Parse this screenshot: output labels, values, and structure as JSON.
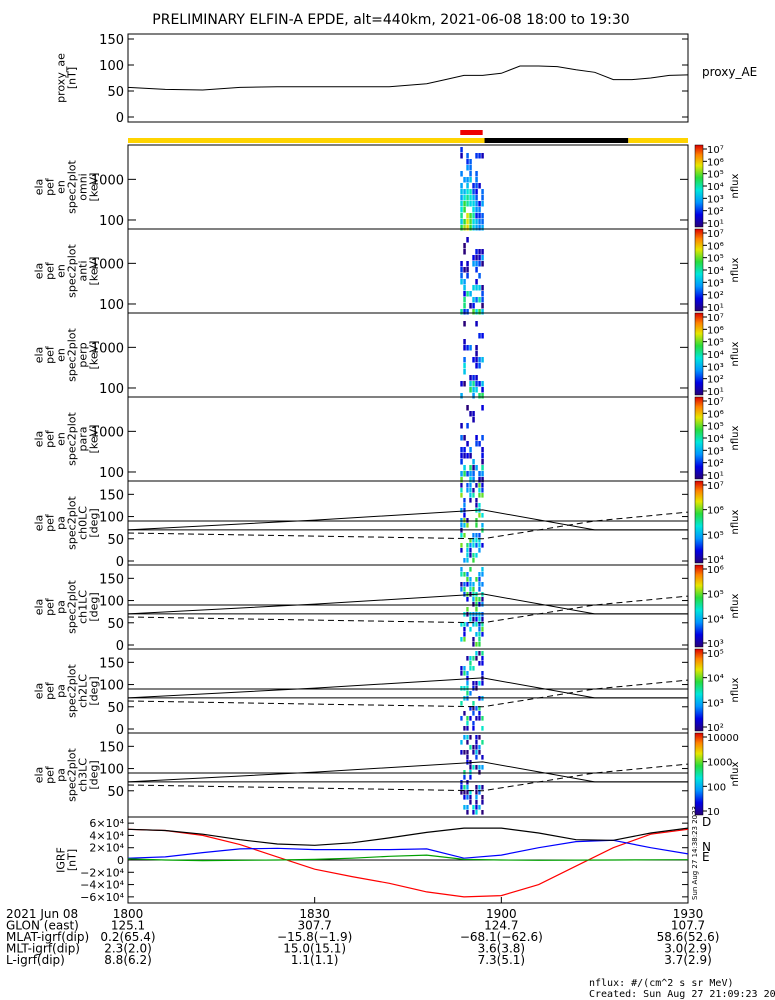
{
  "title": "PRELIMINARY ELFIN-A EPDE, alt=440km, 2021-06-08 18:00 to 19:30",
  "colors": {
    "sunlit": "#ffd400",
    "shadow": "#000000",
    "science": "#ee0000",
    "north": "#0000ff",
    "east": "#00a000",
    "down": "#ff0000",
    "total": "#000000"
  },
  "state_bar": [
    {
      "kind": "sunlit",
      "t0": 18.0,
      "t1": 18.955
    },
    {
      "kind": "shadow",
      "t0": 18.955,
      "t1": 19.34
    },
    {
      "kind": "sunlit",
      "t0": 19.34,
      "t1": 19.5
    },
    {
      "kind": "science",
      "t0": 18.89,
      "t1": 18.95
    }
  ],
  "panels": {
    "ae": {
      "ylabel": [
        "proxy_ae",
        "[nT]"
      ],
      "yticks": [
        "0",
        "50",
        "100",
        "150"
      ],
      "right_label": "proxy_AE"
    },
    "spec": [
      {
        "ylabel": [
          "ela",
          "pef",
          "en",
          "spec2plot",
          "omni",
          "[keV]"
        ],
        "yticks": [
          "100",
          "1000"
        ],
        "zunit": "nflux"
      },
      {
        "ylabel": [
          "ela",
          "pef",
          "en",
          "spec2plot",
          "anti",
          "[keV]"
        ],
        "yticks": [
          "100",
          "1000"
        ],
        "zunit": "nflux"
      },
      {
        "ylabel": [
          "ela",
          "pef",
          "en",
          "spec2plot",
          "perp",
          "[keV]"
        ],
        "yticks": [
          "100",
          "1000"
        ],
        "zunit": "nflux"
      },
      {
        "ylabel": [
          "ela",
          "pef",
          "en",
          "spec2plot",
          "para",
          "[keV]"
        ],
        "yticks": [
          "100",
          "1000"
        ],
        "zunit": "nflux"
      }
    ],
    "pa": [
      {
        "ylabel": [
          "ela",
          "pef",
          "pa",
          "spec2plot",
          "ch0LC",
          "[deg]"
        ],
        "yticks": [
          "0",
          "50",
          "100",
          "150"
        ],
        "zunit": "nflux"
      },
      {
        "ylabel": [
          "ela",
          "pef",
          "pa",
          "spec2plot",
          "ch1LC",
          "[deg]"
        ],
        "yticks": [
          "0",
          "50",
          "100",
          "150"
        ],
        "zunit": "nflux"
      },
      {
        "ylabel": [
          "ela",
          "pef",
          "pa",
          "spec2plot",
          "ch2LC",
          "[deg]"
        ],
        "yticks": [
          "0",
          "50",
          "100",
          "150"
        ],
        "zunit": "nflux"
      },
      {
        "ylabel": [
          "ela",
          "pef",
          "pa",
          "spec2plot",
          "ch3LC",
          "[deg]"
        ],
        "yticks": [
          "50",
          "100",
          "150"
        ],
        "zunit": "nflux"
      }
    ],
    "igrf": {
      "ylabel": [
        "IGRF",
        "[nT]"
      ],
      "yticks": [
        "−6×10⁴",
        "−4×10⁴",
        "−2×10⁴",
        "0",
        "2×10⁴",
        "4×10⁴",
        "6×10⁴"
      ],
      "legend": [
        "D",
        "N",
        "E"
      ],
      "side_note": "Sun Aug 27 14:38:23 2023"
    }
  },
  "colorbars": [
    {
      "labels": [
        "10¹",
        "10²",
        "10³",
        "10⁴",
        "10⁵",
        "10⁶",
        "10⁷"
      ],
      "unit": "nflux"
    },
    {
      "labels": [
        "10¹",
        "10²",
        "10³",
        "10⁴",
        "10⁵",
        "10⁶",
        "10⁷"
      ],
      "unit": "nflux"
    },
    {
      "labels": [
        "10¹",
        "10²",
        "10³",
        "10⁴",
        "10⁵",
        "10⁶",
        "10⁷"
      ],
      "unit": "nflux"
    },
    {
      "labels": [
        "10¹",
        "10²",
        "10³",
        "10⁴",
        "10⁵",
        "10⁶",
        "10⁷"
      ],
      "unit": "nflux"
    },
    {
      "labels": [
        "10⁴",
        "10⁵",
        "10⁶",
        "10⁷"
      ],
      "unit": "nflux"
    },
    {
      "labels": [
        "10³",
        "10⁴",
        "10⁵",
        "10⁶"
      ],
      "unit": "nflux"
    },
    {
      "labels": [
        "10²",
        "10³",
        "10⁴",
        "10⁵"
      ],
      "unit": "nflux"
    },
    {
      "labels": [
        "10",
        "100",
        "1000",
        "10000"
      ],
      "unit": "nflux"
    }
  ],
  "chart_data": [
    {
      "type": "line",
      "panel": "proxy_ae",
      "x": [
        18.0,
        18.1,
        18.2,
        18.3,
        18.4,
        18.5,
        18.6,
        18.7,
        18.8,
        18.85,
        18.9,
        18.95,
        19.0,
        19.05,
        19.1,
        19.15,
        19.2,
        19.25,
        19.3,
        19.35,
        19.4,
        19.45,
        19.5
      ],
      "series": [
        {
          "values": [
            57,
            53,
            52,
            57,
            58,
            58,
            58,
            58,
            64,
            72,
            80,
            80,
            84,
            98,
            98,
            97,
            91,
            86,
            72,
            72,
            75,
            80,
            81
          ]
        }
      ],
      "ylim": [
        0,
        150
      ]
    },
    {
      "type": "heatmap",
      "panel": "energy spectrograms",
      "x_window": [
        18.89,
        18.95
      ],
      "y_scale": "log",
      "ylim_keV": [
        60,
        7000
      ],
      "zrange": [
        10,
        10000000
      ],
      "z_scale": "log"
    },
    {
      "type": "line",
      "panel": "pitch angle",
      "x": [
        18.0,
        18.5,
        18.95,
        19.25,
        19.5
      ],
      "series": [
        {
          "values": [
            70,
            92,
            115,
            70,
            70
          ]
        },
        {
          "values": [
            63,
            56,
            50,
            90,
            110
          ]
        }
      ],
      "reference_lines": [
        90,
        70
      ],
      "ylim": [
        0,
        180
      ]
    },
    {
      "type": "line",
      "panel": "IGRF",
      "x": [
        18.0,
        18.1,
        18.2,
        18.3,
        18.4,
        18.5,
        18.6,
        18.7,
        18.8,
        18.9,
        19.0,
        19.1,
        19.2,
        19.3,
        19.4,
        19.5
      ],
      "series": [
        {
          "name": "D",
          "values": [
            50000,
            48000,
            40000,
            25000,
            5000,
            -15000,
            -27000,
            -38000,
            -52000,
            -60000,
            -58000,
            -40000,
            -10000,
            20000,
            42000,
            50000
          ]
        },
        {
          "name": "N",
          "values": [
            3000,
            5000,
            12000,
            18000,
            19000,
            17000,
            17000,
            17000,
            18000,
            3000,
            8000,
            20000,
            30000,
            32000,
            20000,
            10000
          ]
        },
        {
          "name": "E",
          "values": [
            2000,
            0,
            -1000,
            -500,
            0,
            1000,
            3000,
            6000,
            8000,
            1000,
            0,
            -500,
            -200,
            0,
            300,
            500
          ]
        },
        {
          "name": "total",
          "values": [
            50000,
            48000,
            42000,
            33000,
            26000,
            24000,
            28000,
            36000,
            45000,
            52000,
            52000,
            44000,
            33000,
            32000,
            44000,
            52000
          ]
        }
      ],
      "ylim": [
        -70000,
        70000
      ]
    }
  ],
  "xaxis": {
    "tick_labels": [
      "1800",
      "1830",
      "1900",
      "1930"
    ],
    "tick_values": [
      18.0,
      18.5,
      19.0,
      19.5
    ]
  },
  "ephemeris": {
    "rows": [
      {
        "label": "2021 Jun 08",
        "values": [
          "1800",
          "1830",
          "1900",
          "1930"
        ]
      },
      {
        "label": "GLON (east)",
        "values": [
          "125.1",
          "307.7",
          "124.7",
          "107.7"
        ]
      },
      {
        "label": "MLAT-igrf(dip)",
        "values": [
          "0.2(65.4)",
          "−15.8(−1.9)",
          "−68.1(−62.6)",
          "58.6(52.6)"
        ]
      },
      {
        "label": "MLT-igrf(dip)",
        "values": [
          "2.3(2.0)",
          "15.0(15.1)",
          "3.6(3.8)",
          "3.0(2.9)"
        ]
      },
      {
        "label": "L-igrf(dip)",
        "values": [
          "8.8(6.2)",
          "1.1(1.1)",
          "7.3(5.1)",
          "3.7(2.9)"
        ]
      }
    ]
  },
  "footer": {
    "units": "nflux: #/(cm^2 s sr MeV)",
    "created": "Created: Sun Aug 27 21:09:23 2023"
  }
}
